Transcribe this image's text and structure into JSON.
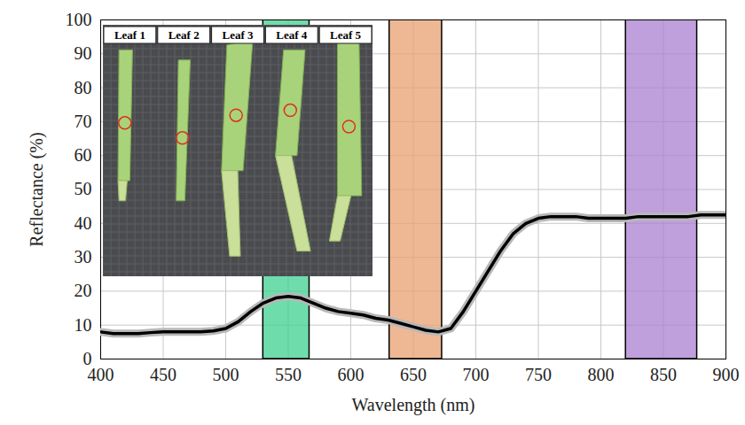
{
  "chart_data": {
    "type": "line",
    "x_label": "Wavelength (nm)",
    "y_label": "Reflectance (%)",
    "x": [
      400,
      410,
      420,
      430,
      440,
      450,
      460,
      470,
      480,
      490,
      500,
      510,
      520,
      530,
      540,
      550,
      560,
      570,
      580,
      590,
      600,
      610,
      620,
      630,
      640,
      650,
      660,
      670,
      680,
      690,
      700,
      710,
      720,
      730,
      740,
      750,
      760,
      770,
      780,
      790,
      800,
      810,
      820,
      830,
      840,
      850,
      860,
      870,
      880,
      890,
      900
    ],
    "values": [
      8,
      7.5,
      7.5,
      7.5,
      7.8,
      8,
      8,
      8,
      8,
      8.3,
      9,
      11,
      14,
      16.5,
      18,
      18.5,
      18,
      16.5,
      15,
      14,
      13.5,
      13,
      12,
      11.5,
      10.5,
      9.5,
      8.5,
      8,
      9,
      14,
      20,
      26,
      32,
      37,
      40,
      41.5,
      42,
      42,
      42,
      41.5,
      41.5,
      41.5,
      41.5,
      42,
      42,
      42,
      42,
      42,
      42.5,
      42.5,
      42.5
    ],
    "color": "#000000",
    "xlim": [
      400,
      900
    ],
    "xticks": [
      400,
      450,
      500,
      550,
      600,
      650,
      700,
      750,
      800,
      850,
      900
    ],
    "ylim": [
      0,
      100
    ],
    "yticks": [
      0,
      10,
      20,
      30,
      40,
      50,
      60,
      70,
      80,
      90,
      100
    ],
    "grid": true,
    "bands": [
      {
        "x0": 530,
        "x1": 567,
        "color": "#3fd08f"
      },
      {
        "x0": 631,
        "x1": 673,
        "color": "#e8a070"
      },
      {
        "x0": 820,
        "x1": 877,
        "color": "#a97fd0"
      }
    ],
    "annotations": [
      "Leaf 1",
      "Leaf 2",
      "Leaf 3",
      "Leaf 4",
      "Leaf 5"
    ]
  }
}
